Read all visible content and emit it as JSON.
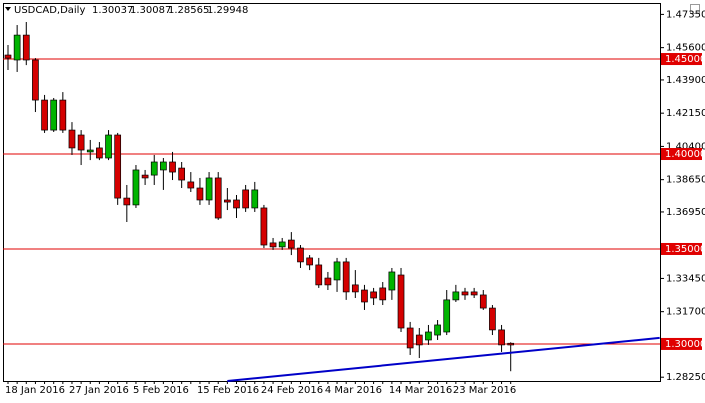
{
  "chart_data": {
    "type": "candlestick",
    "title": "USDCAD,Daily",
    "categories": [
      "18 Jan 2016",
      null,
      null,
      null,
      null,
      null,
      null,
      "27 Jan 2016",
      null,
      null,
      null,
      null,
      null,
      null,
      "5 Feb 2016",
      null,
      null,
      null,
      null,
      null,
      null,
      "15 Feb 2016",
      null,
      null,
      null,
      null,
      null,
      null,
      "24 Feb 2016",
      null,
      null,
      null,
      null,
      null,
      null,
      "4 Mar 2016",
      null,
      null,
      null,
      null,
      null,
      null,
      "14 Mar 2016",
      null,
      null,
      null,
      null,
      null,
      null,
      "23 Mar 2016",
      null,
      null,
      null,
      null,
      null,
      null
    ],
    "open": [
      1.4521,
      1.4495,
      1.4626,
      1.4495,
      1.4284,
      1.4126,
      1.4284,
      1.4126,
      1.41,
      1.4011,
      1.4032,
      1.3979,
      1.41,
      1.3768,
      1.3732,
      1.3889,
      1.3889,
      1.3916,
      1.3958,
      1.3926,
      1.3853,
      1.3821,
      1.3758,
      1.3874,
      1.3758,
      1.3758,
      1.3811,
      1.3716,
      1.3716,
      1.3532,
      1.3511,
      1.3547,
      1.3505,
      1.3453,
      1.3416,
      1.3347,
      1.3337,
      1.3432,
      1.3311,
      1.3284,
      1.3274,
      1.3295,
      1.3284,
      1.3363,
      1.3084,
      1.3047,
      1.3021,
      1.3047,
      1.3063,
      1.3232,
      1.3274,
      1.3274,
      1.3258,
      1.3189,
      1.3074,
      1.30037
    ],
    "high": [
      1.4574,
      1.4679,
      1.4695,
      1.4505,
      1.4311,
      1.4295,
      1.4326,
      1.4168,
      1.4126,
      1.4074,
      1.4063,
      1.4126,
      1.4111,
      1.3837,
      1.3942,
      1.3916,
      1.3995,
      1.3979,
      1.4011,
      1.3958,
      1.3905,
      1.3874,
      1.3905,
      1.3905,
      1.3821,
      1.3784,
      1.3837,
      1.3853,
      1.3732,
      1.3558,
      1.3558,
      1.3589,
      1.3521,
      1.3468,
      1.3453,
      1.3379,
      1.3453,
      1.3453,
      1.3389,
      1.3311,
      1.3295,
      1.3326,
      1.34,
      1.34,
      1.3116,
      1.3084,
      1.31,
      1.3126,
      1.3284,
      1.3311,
      1.3295,
      1.3295,
      1.3284,
      1.3205,
      1.31,
      1.30087
    ],
    "low": [
      1.4442,
      1.4432,
      1.4468,
      1.4221,
      1.4111,
      1.4116,
      1.4111,
      1.3995,
      1.3942,
      1.3968,
      1.3968,
      1.3968,
      1.3732,
      1.3642,
      1.3716,
      1.3837,
      1.3837,
      1.3811,
      1.3863,
      1.3821,
      1.38,
      1.3732,
      1.3732,
      1.3653,
      1.3705,
      1.3663,
      1.3695,
      1.3695,
      1.3505,
      1.3495,
      1.3495,
      1.3468,
      1.34,
      1.3389,
      1.3295,
      1.3284,
      1.3274,
      1.3232,
      1.3242,
      1.3179,
      1.3205,
      1.3205,
      1.3232,
      1.3063,
      1.2942,
      1.2926,
      1.2995,
      1.3021,
      1.3047,
      1.3221,
      1.3232,
      1.3242,
      1.3179,
      1.3047,
      1.2958,
      1.28565
    ],
    "close": [
      1.4505,
      1.4626,
      1.4495,
      1.4284,
      1.4126,
      1.4284,
      1.4126,
      1.4032,
      1.4021,
      1.4021,
      1.3979,
      1.41,
      1.3768,
      1.3732,
      1.3916,
      1.3874,
      1.3958,
      1.3958,
      1.3905,
      1.3863,
      1.3821,
      1.3758,
      1.3874,
      1.3663,
      1.3747,
      1.3716,
      1.3716,
      1.3811,
      1.3521,
      1.3511,
      1.3537,
      1.3505,
      1.3432,
      1.3416,
      1.3311,
      1.3311,
      1.3432,
      1.3274,
      1.3274,
      1.3221,
      1.3242,
      1.3232,
      1.3379,
      1.3084,
      1.2979,
      1.2995,
      1.3063,
      1.31,
      1.3232,
      1.3274,
      1.3258,
      1.3258,
      1.3189,
      1.3074,
      1.2995,
      1.29948
    ],
    "up_color": "#00b400",
    "down_color": "#d40000",
    "ylim": [
      1.2805,
      1.4795
    ],
    "yticks": [
      {
        "value": 1.4735,
        "label": "1.47350"
      },
      {
        "value": 1.456,
        "label": "1.45600"
      },
      {
        "value": 1.439,
        "label": "1.43900"
      },
      {
        "value": 1.4215,
        "label": "1.42150"
      },
      {
        "value": 1.404,
        "label": "1.40400"
      },
      {
        "value": 1.3865,
        "label": "1.38650"
      },
      {
        "value": 1.3695,
        "label": "1.36950"
      },
      {
        "value": 1.3345,
        "label": "1.33450"
      },
      {
        "value": 1.317,
        "label": "1.31700"
      },
      {
        "value": 1.2825,
        "label": "1.28250"
      }
    ],
    "levels": {
      "color": "#e00000",
      "values": [
        {
          "value": 1.45,
          "label": "1.45000"
        },
        {
          "value": 1.4,
          "label": "1.40000"
        },
        {
          "value": 1.35,
          "label": "1.35000"
        },
        {
          "value": 1.3,
          "label": "1.30000"
        }
      ]
    },
    "trendline": {
      "color": "#0000c8",
      "x": [
        24,
        71.3
      ],
      "y": [
        1.2805,
        1.3032
      ]
    }
  }
}
